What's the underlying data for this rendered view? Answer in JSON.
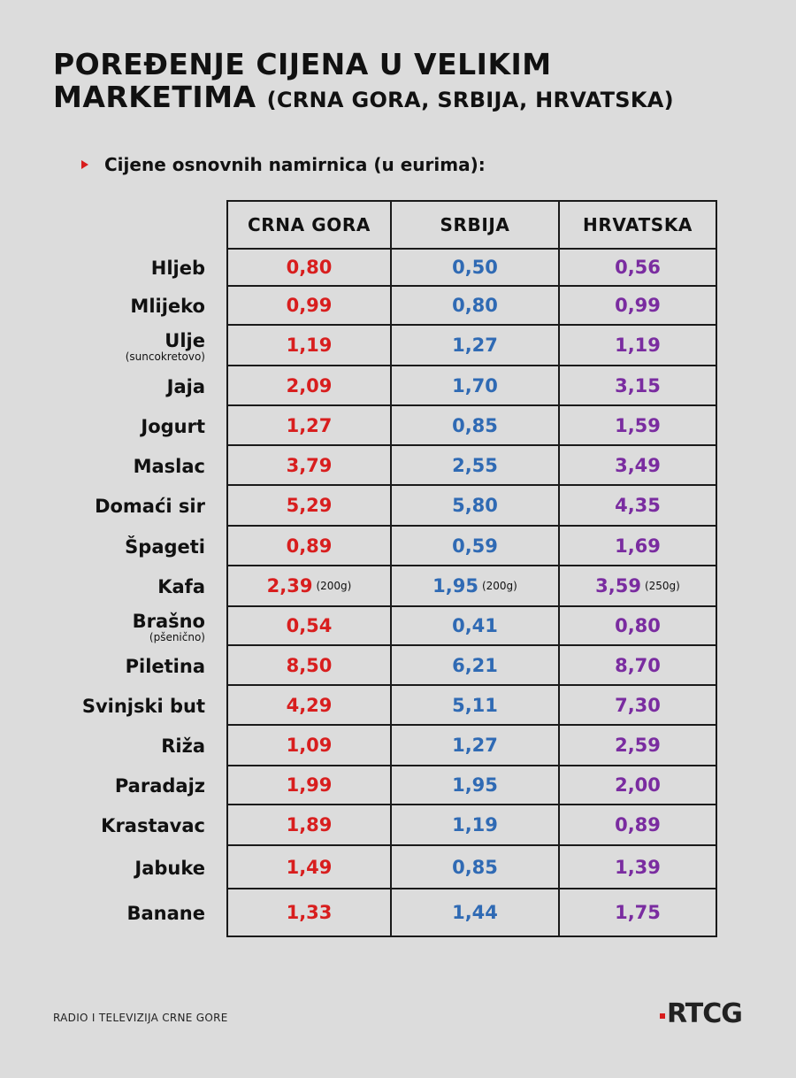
{
  "header": {
    "title_main": "POREĐENJE CIJENA U VELIKIM MARKETIMA",
    "title_sub": "(CRNA GORA, SRBIJA, HRVATSKA)",
    "subtitle": "Cijene osnovnih namirnica (u eurima):"
  },
  "table": {
    "columns": [
      "CRNA GORA",
      "SRBIJA",
      "HRVATSKA"
    ],
    "rows": [
      {
        "label": "Hljeb",
        "cg": "0,80",
        "rs": "0,50",
        "hr": "0,56"
      },
      {
        "label": "Mlijeko",
        "cg": "0,99",
        "rs": "0,80",
        "hr": "0,99"
      },
      {
        "label": "Ulje",
        "sublabel": "(suncokretovo)",
        "cg": "1,19",
        "rs": "1,27",
        "hr": "1,19"
      },
      {
        "label": "Jaja",
        "cg": "2,09",
        "rs": "1,70",
        "hr": "3,15"
      },
      {
        "label": "Jogurt",
        "cg": "1,27",
        "rs": "0,85",
        "hr": "1,59"
      },
      {
        "label": "Maslac",
        "cg": "3,79",
        "rs": "2,55",
        "hr": "3,49"
      },
      {
        "label": "Domaći sir",
        "cg": "5,29",
        "rs": "5,80",
        "hr": "4,35"
      },
      {
        "label": "Špageti",
        "cg": "0,89",
        "rs": "0,59",
        "hr": "1,69"
      },
      {
        "label": "Kafa",
        "cg": "2,39",
        "cg_note": "(200g)",
        "rs": "1,95",
        "rs_note": "(200g)",
        "hr": "3,59",
        "hr_note": "(250g)"
      },
      {
        "label": "Brašno",
        "sublabel": "(pšenično)",
        "cg": "0,54",
        "rs": "0,41",
        "hr": "0,80"
      },
      {
        "label": "Piletina",
        "cg": "8,50",
        "rs": "6,21",
        "hr": "8,70"
      },
      {
        "label": "Svinjski but",
        "cg": "4,29",
        "rs": "5,11",
        "hr": "7,30"
      },
      {
        "label": "Riža",
        "cg": "1,09",
        "rs": "1,27",
        "hr": "2,59"
      },
      {
        "label": "Paradajz",
        "cg": "1,99",
        "rs": "1,95",
        "hr": "2,00"
      },
      {
        "label": "Krastavac",
        "cg": "1,89",
        "rs": "1,19",
        "hr": "0,89"
      },
      {
        "label": "Jabuke",
        "cg": "1,49",
        "rs": "0,85",
        "hr": "1,39"
      },
      {
        "label": "Banane",
        "cg": "1,33",
        "rs": "1,44",
        "hr": "1,75"
      }
    ]
  },
  "colors": {
    "crna_gora": "#d81e1e",
    "srbija": "#2f6ab4",
    "hrvatska": "#7a2ca0",
    "background": "#dcdcdc"
  },
  "footer": {
    "source": "RADIO I TELEVIZIJA CRNE GORE",
    "logo": "RTCG"
  }
}
